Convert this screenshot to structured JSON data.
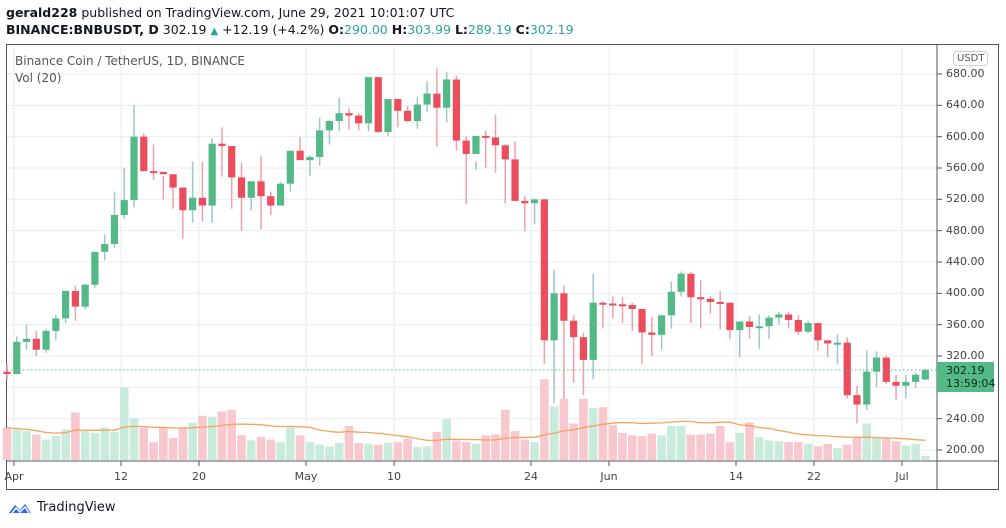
{
  "header": {
    "publisher": "gerald228",
    "published_text": " published on TradingView.com, June 29, 2021 10:01:07 UTC",
    "symbol": "BINANCE:BNBUSDT, D",
    "last": "302.19",
    "change": "+12.19 (+4.2%)",
    "o_label": "O:",
    "o": "290.00",
    "h_label": "H:",
    "h": "303.99",
    "l_label": "L:",
    "l": "289.19",
    "c_label": "C:",
    "c": "302.19"
  },
  "legend": {
    "title": "Binance Coin / TetherUS, 1D, BINANCE",
    "vol": "Vol (20)"
  },
  "axis": {
    "currency": "USDT",
    "y_ticks": [
      "680.00",
      "640.00",
      "600.00",
      "560.00",
      "520.00",
      "480.00",
      "440.00",
      "400.00",
      "360.00",
      "320.00",
      "240.00",
      "200.00"
    ],
    "x_ticks": [
      "Apr",
      "12",
      "20",
      "May",
      "10",
      "24",
      "Jun",
      "14",
      "22",
      "Jul"
    ],
    "last_price": "302.19",
    "countdown": "13:59:04"
  },
  "brand": {
    "name": "TradingView"
  },
  "colors": {
    "up": "#53b987",
    "down": "#eb4d5c",
    "vol_up": "#c8ebdc",
    "vol_down": "#f8c8cf",
    "ma": "#f7a35c",
    "grid": "#e6edf3"
  },
  "chart_data": {
    "type": "candlestick",
    "title": "Binance Coin / TetherUS, 1D, BINANCE",
    "symbol": "BINANCE:BNBUSDT",
    "interval": "1D",
    "ylim": [
      180,
      690
    ],
    "y_ticks": [
      200,
      240,
      320,
      360,
      400,
      440,
      480,
      520,
      560,
      600,
      640,
      680
    ],
    "x_labels": [
      "Apr",
      "12",
      "20",
      "May",
      "10",
      "24",
      "Jun",
      "14",
      "22",
      "Jul"
    ],
    "last_ohlc": {
      "open": 290.0,
      "high": 303.99,
      "low": 289.19,
      "close": 302.19,
      "change": 12.19,
      "change_pct": 4.2
    },
    "candles": [
      [
        300,
        310,
        290,
        297
      ],
      [
        297,
        345,
        297,
        338
      ],
      [
        338,
        360,
        328,
        342
      ],
      [
        342,
        352,
        320,
        328
      ],
      [
        328,
        355,
        324,
        352
      ],
      [
        352,
        373,
        340,
        368
      ],
      [
        368,
        400,
        362,
        403
      ],
      [
        403,
        410,
        365,
        383
      ],
      [
        383,
        412,
        380,
        411
      ],
      [
        411,
        450,
        407,
        453
      ],
      [
        453,
        475,
        442,
        463
      ],
      [
        463,
        530,
        458,
        500
      ],
      [
        500,
        560,
        495,
        519
      ],
      [
        519,
        640,
        510,
        600
      ],
      [
        600,
        604,
        556,
        556
      ],
      [
        556,
        590,
        545,
        555
      ],
      [
        555,
        550,
        520,
        552
      ],
      [
        552,
        548,
        508,
        535
      ],
      [
        535,
        525,
        470,
        506
      ],
      [
        506,
        568,
        490,
        522
      ],
      [
        522,
        568,
        492,
        512
      ],
      [
        512,
        598,
        490,
        591
      ],
      [
        591,
        612,
        549,
        588
      ],
      [
        588,
        582,
        508,
        548
      ],
      [
        548,
        567,
        480,
        522
      ],
      [
        522,
        543,
        506,
        543
      ],
      [
        543,
        576,
        482,
        524
      ],
      [
        524,
        530,
        500,
        512
      ],
      [
        512,
        542,
        516,
        540
      ],
      [
        540,
        578,
        530,
        582
      ],
      [
        582,
        600,
        570,
        570
      ],
      [
        570,
        576,
        550,
        574
      ],
      [
        574,
        624,
        563,
        608
      ],
      [
        608,
        621,
        590,
        620
      ],
      [
        620,
        650,
        607,
        630
      ],
      [
        630,
        636,
        609,
        627
      ],
      [
        627,
        630,
        608,
        617
      ],
      [
        617,
        657,
        607,
        676
      ],
      [
        676,
        676,
        605,
        606
      ],
      [
        606,
        647,
        601,
        648
      ],
      [
        648,
        633,
        612,
        633
      ],
      [
        633,
        639,
        618,
        620
      ],
      [
        620,
        650,
        610,
        641
      ],
      [
        641,
        671,
        631,
        655
      ],
      [
        655,
        687,
        587,
        637
      ],
      [
        637,
        683,
        618,
        673
      ],
      [
        673,
        678,
        582,
        595
      ],
      [
        595,
        601,
        514,
        578
      ],
      [
        578,
        568,
        558,
        601
      ],
      [
        601,
        608,
        560,
        599
      ],
      [
        599,
        628,
        554,
        589
      ],
      [
        589,
        590,
        515,
        571
      ],
      [
        571,
        594,
        524,
        518
      ],
      [
        518,
        524,
        479,
        515
      ],
      [
        515,
        521,
        488,
        520
      ],
      [
        520,
        485,
        310,
        340
      ],
      [
        340,
        430,
        260,
        400
      ],
      [
        400,
        410,
        265,
        365
      ],
      [
        365,
        372,
        286,
        344
      ],
      [
        344,
        350,
        270,
        315
      ],
      [
        315,
        425,
        290,
        388
      ],
      [
        388,
        390,
        355,
        387
      ],
      [
        387,
        396,
        368,
        386
      ],
      [
        386,
        395,
        362,
        385
      ],
      [
        385,
        388,
        352,
        380
      ],
      [
        380,
        375,
        310,
        350
      ],
      [
        350,
        370,
        320,
        347
      ],
      [
        347,
        372,
        328,
        372
      ],
      [
        372,
        415,
        355,
        402
      ],
      [
        402,
        428,
        396,
        425
      ],
      [
        425,
        427,
        362,
        395
      ],
      [
        395,
        417,
        355,
        393
      ],
      [
        393,
        397,
        374,
        389
      ],
      [
        389,
        403,
        354,
        388
      ],
      [
        388,
        379,
        342,
        353
      ],
      [
        353,
        363,
        319,
        364
      ],
      [
        364,
        371,
        342,
        357
      ],
      [
        357,
        373,
        329,
        358
      ],
      [
        358,
        372,
        342,
        369
      ],
      [
        369,
        376,
        360,
        373
      ],
      [
        373,
        376,
        355,
        366
      ],
      [
        366,
        372,
        347,
        351
      ],
      [
        351,
        365,
        349,
        362
      ],
      [
        362,
        361,
        327,
        340
      ],
      [
        340,
        338,
        318,
        336
      ],
      [
        336,
        348,
        310,
        337
      ],
      [
        337,
        344,
        266,
        270
      ],
      [
        270,
        282,
        234,
        258
      ],
      [
        258,
        327,
        251,
        300
      ],
      [
        300,
        326,
        280,
        318
      ],
      [
        318,
        321,
        284,
        287
      ],
      [
        287,
        296,
        264,
        282
      ],
      [
        282,
        296,
        266,
        287
      ],
      [
        287,
        299,
        279,
        296
      ],
      [
        290,
        304,
        289,
        302
      ]
    ],
    "volume_ma_len": 20,
    "volume_relative": [
      0.38,
      0.36,
      0.34,
      0.3,
      0.24,
      0.28,
      0.36,
      0.56,
      0.35,
      0.32,
      0.38,
      0.33,
      0.85,
      0.49,
      0.38,
      0.21,
      0.38,
      0.26,
      0.38,
      0.44,
      0.52,
      0.51,
      0.57,
      0.59,
      0.29,
      0.23,
      0.27,
      0.24,
      0.21,
      0.38,
      0.29,
      0.21,
      0.18,
      0.16,
      0.2,
      0.4,
      0.2,
      0.19,
      0.18,
      0.2,
      0.21,
      0.25,
      0.15,
      0.16,
      0.33,
      0.48,
      0.23,
      0.21,
      0.19,
      0.29,
      0.3,
      0.59,
      0.34,
      0.24,
      0.21,
      0.95,
      0.63,
      0.72,
      0.43,
      0.72,
      0.61,
      0.62,
      0.41,
      0.32,
      0.29,
      0.28,
      0.31,
      0.29,
      0.4,
      0.4,
      0.3,
      0.3,
      0.31,
      0.4,
      0.21,
      0.32,
      0.44,
      0.27,
      0.23,
      0.22,
      0.21,
      0.21,
      0.19,
      0.16,
      0.19,
      0.14,
      0.18,
      0.26,
      0.43,
      0.27,
      0.26,
      0.22,
      0.17,
      0.19,
      0.05
    ]
  }
}
